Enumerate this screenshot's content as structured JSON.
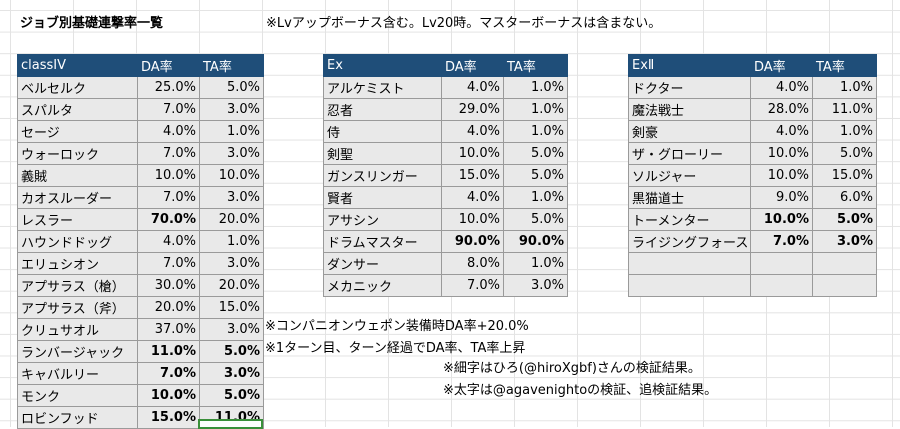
{
  "title": "ジョブ別基礎連撃率一覧",
  "notes": {
    "top": "※Lvアップボーナス含む。Lv20時。マスターボーナスは含まない。",
    "companion": "※コンパニオンウェポン装備時DA率+20.0%",
    "turn": "※1ターン目、ターン経過でDA率、TA率上昇",
    "thin": "※細字はひろ(@hiroXgbf)さんの検証結果。",
    "bold": "※太字は@agavenightoの検証、追検証結果。"
  },
  "tables": {
    "classIV": {
      "headers": [
        "classIV",
        "DA率",
        "TA率"
      ],
      "rows": [
        {
          "name": "ベルセルク",
          "da": "25.0%",
          "ta": "5.0%",
          "bold_da": false,
          "bold_ta": false
        },
        {
          "name": "スパルタ",
          "da": "7.0%",
          "ta": "3.0%",
          "bold_da": false,
          "bold_ta": false
        },
        {
          "name": "セージ",
          "da": "4.0%",
          "ta": "1.0%",
          "bold_da": false,
          "bold_ta": false
        },
        {
          "name": "ウォーロック",
          "da": "7.0%",
          "ta": "3.0%",
          "bold_da": false,
          "bold_ta": false
        },
        {
          "name": "義賊",
          "da": "10.0%",
          "ta": "10.0%",
          "bold_da": false,
          "bold_ta": false
        },
        {
          "name": "カオスルーダー",
          "da": "7.0%",
          "ta": "3.0%",
          "bold_da": false,
          "bold_ta": false
        },
        {
          "name": "レスラー",
          "da": "70.0%",
          "ta": "20.0%",
          "bold_da": true,
          "bold_ta": false
        },
        {
          "name": "ハウンドドッグ",
          "da": "4.0%",
          "ta": "1.0%",
          "bold_da": false,
          "bold_ta": false
        },
        {
          "name": "エリュシオン",
          "da": "7.0%",
          "ta": "3.0%",
          "bold_da": false,
          "bold_ta": false
        },
        {
          "name": "アプサラス（槍）",
          "da": "30.0%",
          "ta": "20.0%",
          "bold_da": false,
          "bold_ta": false
        },
        {
          "name": "アプサラス（斧）",
          "da": "20.0%",
          "ta": "15.0%",
          "bold_da": false,
          "bold_ta": false
        },
        {
          "name": "クリュサオル",
          "da": "37.0%",
          "ta": "3.0%",
          "bold_da": false,
          "bold_ta": false
        },
        {
          "name": "ランバージャック",
          "da": "11.0%",
          "ta": "5.0%",
          "bold_da": true,
          "bold_ta": true
        },
        {
          "name": "キャバルリー",
          "da": "7.0%",
          "ta": "3.0%",
          "bold_da": true,
          "bold_ta": true
        },
        {
          "name": "モンク",
          "da": "10.0%",
          "ta": "5.0%",
          "bold_da": true,
          "bold_ta": true
        },
        {
          "name": "ロビンフッド",
          "da": "15.0%",
          "ta": "11.0%",
          "bold_da": true,
          "bold_ta": true
        }
      ]
    },
    "ex": {
      "headers": [
        "Ex",
        "DA率",
        "TA率"
      ],
      "rows": [
        {
          "name": "アルケミスト",
          "da": "4.0%",
          "ta": "1.0%",
          "bold_da": false,
          "bold_ta": false
        },
        {
          "name": "忍者",
          "da": "29.0%",
          "ta": "1.0%",
          "bold_da": false,
          "bold_ta": false
        },
        {
          "name": "侍",
          "da": "4.0%",
          "ta": "1.0%",
          "bold_da": false,
          "bold_ta": false
        },
        {
          "name": "剣聖",
          "da": "10.0%",
          "ta": "5.0%",
          "bold_da": false,
          "bold_ta": false
        },
        {
          "name": "ガンスリンガー",
          "da": "15.0%",
          "ta": "5.0%",
          "bold_da": false,
          "bold_ta": false
        },
        {
          "name": "賢者",
          "da": "4.0%",
          "ta": "1.0%",
          "bold_da": false,
          "bold_ta": false
        },
        {
          "name": "アサシン",
          "da": "10.0%",
          "ta": "5.0%",
          "bold_da": false,
          "bold_ta": false
        },
        {
          "name": "ドラムマスター",
          "da": "90.0%",
          "ta": "90.0%",
          "bold_da": true,
          "bold_ta": true
        },
        {
          "name": "ダンサー",
          "da": "8.0%",
          "ta": "1.0%",
          "bold_da": false,
          "bold_ta": false
        },
        {
          "name": "メカニック",
          "da": "7.0%",
          "ta": "3.0%",
          "bold_da": false,
          "bold_ta": false
        }
      ]
    },
    "exII": {
      "headers": [
        "ExⅡ",
        "DA率",
        "TA率"
      ],
      "rows": [
        {
          "name": "ドクター",
          "da": "4.0%",
          "ta": "1.0%",
          "bold_da": false,
          "bold_ta": false
        },
        {
          "name": "魔法戦士",
          "da": "28.0%",
          "ta": "11.0%",
          "bold_da": false,
          "bold_ta": false
        },
        {
          "name": "剣豪",
          "da": "4.0%",
          "ta": "1.0%",
          "bold_da": false,
          "bold_ta": false
        },
        {
          "name": "ザ・グローリー",
          "da": "10.0%",
          "ta": "5.0%",
          "bold_da": false,
          "bold_ta": false
        },
        {
          "name": "ソルジャー",
          "da": "10.0%",
          "ta": "15.0%",
          "bold_da": false,
          "bold_ta": false
        },
        {
          "name": "黒猫道士",
          "da": "9.0%",
          "ta": "6.0%",
          "bold_da": false,
          "bold_ta": false
        },
        {
          "name": "トーメンター",
          "da": "10.0%",
          "ta": "5.0%",
          "bold_da": true,
          "bold_ta": true
        },
        {
          "name": "ライジングフォース",
          "da": "7.0%",
          "ta": "3.0%",
          "bold_da": true,
          "bold_ta": true
        },
        {
          "name": "",
          "da": "",
          "ta": "",
          "bold_da": false,
          "bold_ta": false
        },
        {
          "name": "",
          "da": "",
          "ta": "",
          "bold_da": false,
          "bold_ta": false
        }
      ]
    }
  }
}
